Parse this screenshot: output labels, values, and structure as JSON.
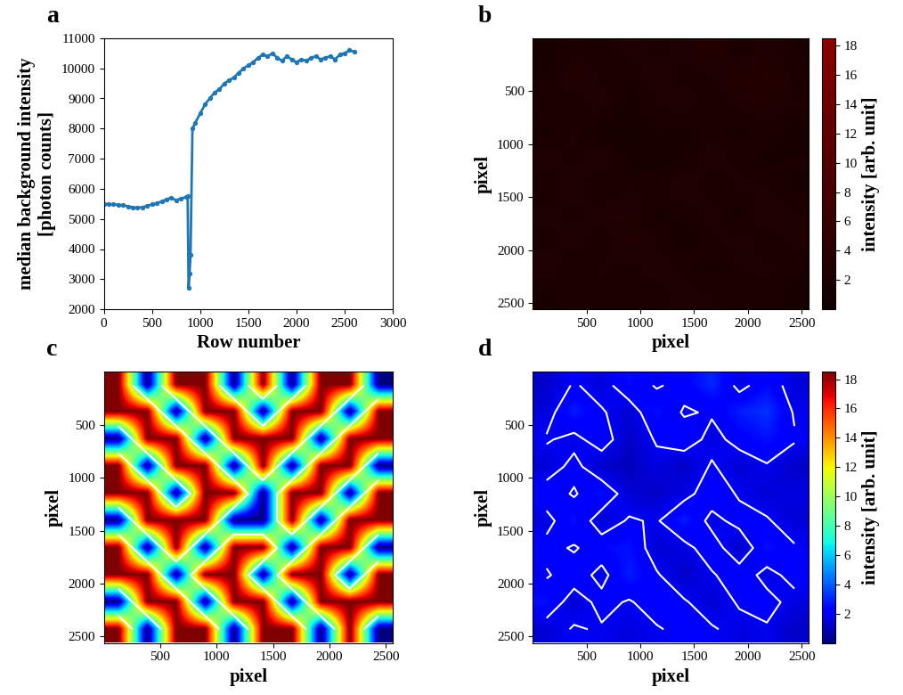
{
  "chart_data": [
    {
      "type": "scatter",
      "panel": "a",
      "x_label": "Row number",
      "y_label": "median background intensity\n[photon counts]",
      "color": "#1f77b4",
      "marker": "o",
      "x": [
        0,
        50,
        100,
        150,
        200,
        250,
        300,
        350,
        400,
        450,
        500,
        550,
        600,
        650,
        700,
        750,
        800,
        850,
        870,
        880,
        890,
        900,
        920,
        950,
        1000,
        1050,
        1100,
        1150,
        1200,
        1250,
        1300,
        1350,
        1400,
        1450,
        1500,
        1550,
        1600,
        1650,
        1700,
        1750,
        1800,
        1850,
        1900,
        1950,
        2000,
        2050,
        2100,
        2150,
        2200,
        2250,
        2300,
        2350,
        2400,
        2450,
        2500,
        2550,
        2600
      ],
      "values": [
        5500,
        5490,
        5480,
        5470,
        5450,
        5420,
        5380,
        5370,
        5390,
        5430,
        5480,
        5520,
        5580,
        5650,
        5700,
        5620,
        5680,
        5720,
        5750,
        2700,
        3200,
        3800,
        8000,
        8200,
        8500,
        8800,
        9000,
        9200,
        9300,
        9500,
        9600,
        9700,
        9850,
        10000,
        10100,
        10200,
        10350,
        10450,
        10400,
        10500,
        10350,
        10250,
        10400,
        10300,
        10200,
        10300,
        10250,
        10350,
        10400,
        10300,
        10350,
        10400,
        10300,
        10450,
        10500,
        10600,
        10550
      ],
      "xlim": [
        0,
        3000
      ],
      "xticks": [
        0,
        500,
        1000,
        1500,
        2000,
        2500,
        3000
      ],
      "ylim": [
        2000,
        11000
      ],
      "yticks": [
        2000,
        3000,
        4000,
        5000,
        6000,
        7000,
        8000,
        9000,
        10000,
        11000
      ]
    },
    {
      "type": "heatmap",
      "panel": "b",
      "x_label": "pixel",
      "y_label": "pixel",
      "xlim": [
        0,
        2560
      ],
      "ylim": [
        2560,
        0
      ],
      "xticks": [
        500,
        1000,
        1500,
        2000,
        2500
      ],
      "yticks": [
        500,
        1000,
        1500,
        2000,
        2500
      ],
      "cells": [
        [
          1.2,
          2.0,
          1.5,
          2.5,
          1.8,
          2.2,
          3.0,
          1.6,
          2.4,
          1.5
        ],
        [
          1.5,
          2.8,
          2.0,
          1.4,
          2.6,
          1.8,
          2.0,
          2.8,
          3.2,
          1.8
        ],
        [
          2.0,
          1.6,
          2.4,
          1.2,
          2.0,
          2.4,
          1.6,
          2.2,
          2.6,
          2.0
        ],
        [
          1.4,
          2.2,
          1.2,
          1.0,
          1.6,
          1.2,
          2.0,
          1.4,
          1.8,
          1.2
        ],
        [
          2.4,
          1.8,
          2.6,
          1.4,
          1.2,
          1.6,
          2.4,
          1.8,
          1.4,
          1.6
        ],
        [
          1.6,
          2.6,
          1.4,
          2.0,
          1.8,
          2.8,
          1.6,
          2.2,
          2.0,
          1.4
        ],
        [
          2.2,
          1.8,
          2.4,
          2.6,
          1.4,
          1.6,
          2.4,
          1.2,
          2.6,
          2.0
        ],
        [
          1.8,
          2.4,
          1.6,
          2.8,
          2.0,
          1.2,
          1.8,
          2.4,
          1.6,
          2.2
        ],
        [
          2.6,
          1.4,
          2.2,
          1.8,
          2.4,
          2.0,
          1.4,
          2.0,
          2.2,
          1.6
        ],
        [
          1.4,
          2.0,
          1.8,
          1.6,
          1.8,
          2.2,
          2.0,
          1.6,
          1.8,
          1.2
        ]
      ],
      "colorbar": {
        "label": "intensity [arb. unit]",
        "lim": [
          0,
          18.5
        ],
        "ticks": [
          2,
          4,
          6,
          8,
          10,
          12,
          14,
          16,
          18
        ]
      }
    },
    {
      "type": "heatmap",
      "panel": "c",
      "x_label": "pixel",
      "y_label": "pixel",
      "xlim": [
        0,
        2560
      ],
      "ylim": [
        2560,
        0
      ],
      "xticks": [
        500,
        1000,
        1500,
        2000,
        2500
      ],
      "yticks": [
        500,
        1000,
        1500,
        2000,
        2500
      ],
      "cells": [
        [
          1,
          0,
          1,
          1,
          0,
          1,
          0,
          1,
          1,
          0
        ],
        [
          1,
          1,
          0,
          1,
          1,
          0,
          1,
          1,
          0,
          1
        ],
        [
          0,
          1,
          1,
          0,
          1,
          1,
          1,
          0,
          1,
          1
        ],
        [
          1,
          0,
          1,
          1,
          0,
          1,
          0,
          1,
          1,
          0
        ],
        [
          1,
          1,
          0,
          1,
          1,
          0,
          1,
          1,
          0,
          1
        ],
        [
          0,
          1,
          1,
          1,
          0,
          0,
          1,
          0,
          1,
          1
        ],
        [
          1,
          0,
          1,
          0,
          1,
          1,
          0,
          1,
          1,
          0
        ],
        [
          1,
          1,
          0,
          1,
          1,
          0,
          1,
          1,
          0,
          1
        ],
        [
          0,
          1,
          1,
          0,
          1,
          1,
          0,
          1,
          1,
          1
        ],
        [
          1,
          0,
          1,
          1,
          0,
          1,
          1,
          0,
          1,
          0
        ]
      ],
      "contour_level": 0.5
    },
    {
      "type": "heatmap",
      "panel": "d",
      "x_label": "pixel",
      "y_label": "pixel",
      "xlim": [
        0,
        2560
      ],
      "ylim": [
        2560,
        0
      ],
      "xticks": [
        500,
        1000,
        1500,
        2000,
        2500
      ],
      "yticks": [
        500,
        1000,
        1500,
        2000,
        2500
      ],
      "cells": [
        [
          1.2,
          2.0,
          1.5,
          2.5,
          1.8,
          2.2,
          3.0,
          1.6,
          2.4,
          1.5
        ],
        [
          1.5,
          2.8,
          2.0,
          1.4,
          2.6,
          1.8,
          2.0,
          2.8,
          3.2,
          1.8
        ],
        [
          2.0,
          1.6,
          2.4,
          1.2,
          2.0,
          2.4,
          1.6,
          2.2,
          2.6,
          2.0
        ],
        [
          1.4,
          2.2,
          1.2,
          1.0,
          1.6,
          1.2,
          2.0,
          1.4,
          1.8,
          1.2
        ],
        [
          2.4,
          1.8,
          2.6,
          1.4,
          1.2,
          1.6,
          2.4,
          1.8,
          1.4,
          1.6
        ],
        [
          1.6,
          2.6,
          1.4,
          2.0,
          1.8,
          2.8,
          1.6,
          2.2,
          2.0,
          1.4
        ],
        [
          2.2,
          1.8,
          2.4,
          2.6,
          1.4,
          1.6,
          2.4,
          1.2,
          2.6,
          2.0
        ],
        [
          1.8,
          2.4,
          1.6,
          2.8,
          2.0,
          1.2,
          1.8,
          2.4,
          1.6,
          2.2
        ],
        [
          2.6,
          1.4,
          2.2,
          1.8,
          2.4,
          2.0,
          1.4,
          2.0,
          2.2,
          1.6
        ],
        [
          1.4,
          2.0,
          1.8,
          1.6,
          1.8,
          2.2,
          2.0,
          1.6,
          1.8,
          1.2
        ]
      ],
      "contour_level": 1.9,
      "colorbar": {
        "label": "intensity [arb. unit]",
        "lim": [
          0,
          18.5
        ],
        "ticks": [
          2,
          4,
          6,
          8,
          10,
          12,
          14,
          16,
          18
        ]
      }
    }
  ]
}
